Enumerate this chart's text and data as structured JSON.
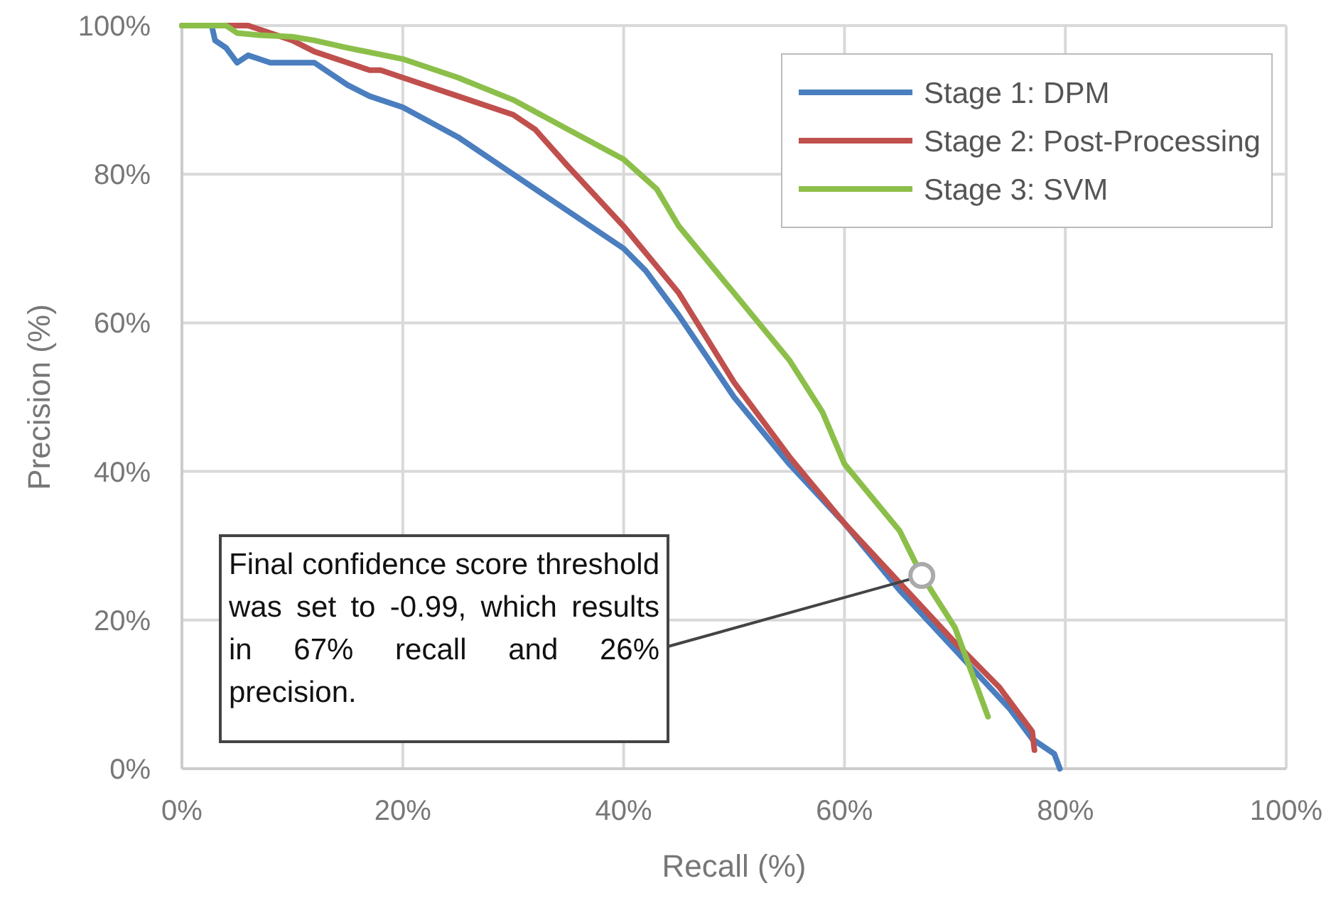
{
  "chart_data": {
    "type": "line",
    "xlabel": "Recall (%)",
    "ylabel": "Precision (%)",
    "xlim": [
      0,
      100
    ],
    "ylim": [
      0,
      100
    ],
    "xticks": [
      {
        "value": 0,
        "label": "0%"
      },
      {
        "value": 20,
        "label": "20%"
      },
      {
        "value": 40,
        "label": "40%"
      },
      {
        "value": 60,
        "label": "60%"
      },
      {
        "value": 80,
        "label": "80%"
      },
      {
        "value": 100,
        "label": "100%"
      }
    ],
    "yticks": [
      {
        "value": 0,
        "label": "0%"
      },
      {
        "value": 20,
        "label": "20%"
      },
      {
        "value": 40,
        "label": "40%"
      },
      {
        "value": 60,
        "label": "60%"
      },
      {
        "value": 80,
        "label": "80%"
      },
      {
        "value": 100,
        "label": "100%"
      }
    ],
    "grid": true,
    "legend": "top right",
    "marker": "none",
    "line_style": "solid",
    "series": [
      {
        "name": "Stage 1: DPM",
        "color": "#4a7ebf",
        "x": [
          2.7,
          3,
          4,
          5,
          6,
          7,
          8,
          10,
          12,
          13,
          15,
          17,
          20,
          25,
          30,
          35,
          40,
          42,
          45,
          50,
          55,
          60,
          65,
          70,
          75,
          77,
          78,
          79,
          79.5
        ],
        "values": [
          100,
          98,
          97,
          95,
          96,
          95.5,
          95,
          95,
          95,
          94,
          92,
          90.5,
          89,
          85,
          80,
          75,
          70,
          67,
          61,
          50,
          41,
          33,
          24,
          16,
          8,
          4,
          3,
          2,
          0
        ]
      },
      {
        "name": "Stage 2: Post-Processing",
        "color": "#c0504d",
        "x": [
          0,
          6,
          8,
          10,
          12,
          15,
          17,
          18,
          20,
          25,
          30,
          32,
          35,
          40,
          45,
          50,
          55,
          60,
          65,
          70,
          74,
          76,
          77,
          77.2
        ],
        "values": [
          100,
          100,
          99,
          98,
          96.5,
          95,
          94,
          94,
          93,
          90.5,
          88,
          86,
          81,
          73,
          64,
          52,
          42,
          33,
          25,
          17,
          11,
          7,
          5,
          2.5
        ]
      },
      {
        "name": "Stage 3: SVM",
        "color": "#8cbf4a",
        "x": [
          0,
          4,
          5,
          7,
          10,
          12,
          15,
          20,
          25,
          30,
          35,
          40,
          43,
          45,
          50,
          55,
          58,
          60,
          65,
          67,
          70,
          72,
          73
        ],
        "values": [
          100,
          100,
          99,
          98.7,
          98.5,
          98,
          97,
          95.5,
          93,
          90,
          86,
          82,
          78,
          73,
          64,
          55,
          48,
          41,
          32,
          26,
          19,
          11,
          7
        ]
      }
    ],
    "annotations": [
      {
        "text": "Final confidence score threshold was set to -0.99, which results in 67% recall and 26% precision.",
        "x": 67,
        "y": 26
      }
    ]
  }
}
